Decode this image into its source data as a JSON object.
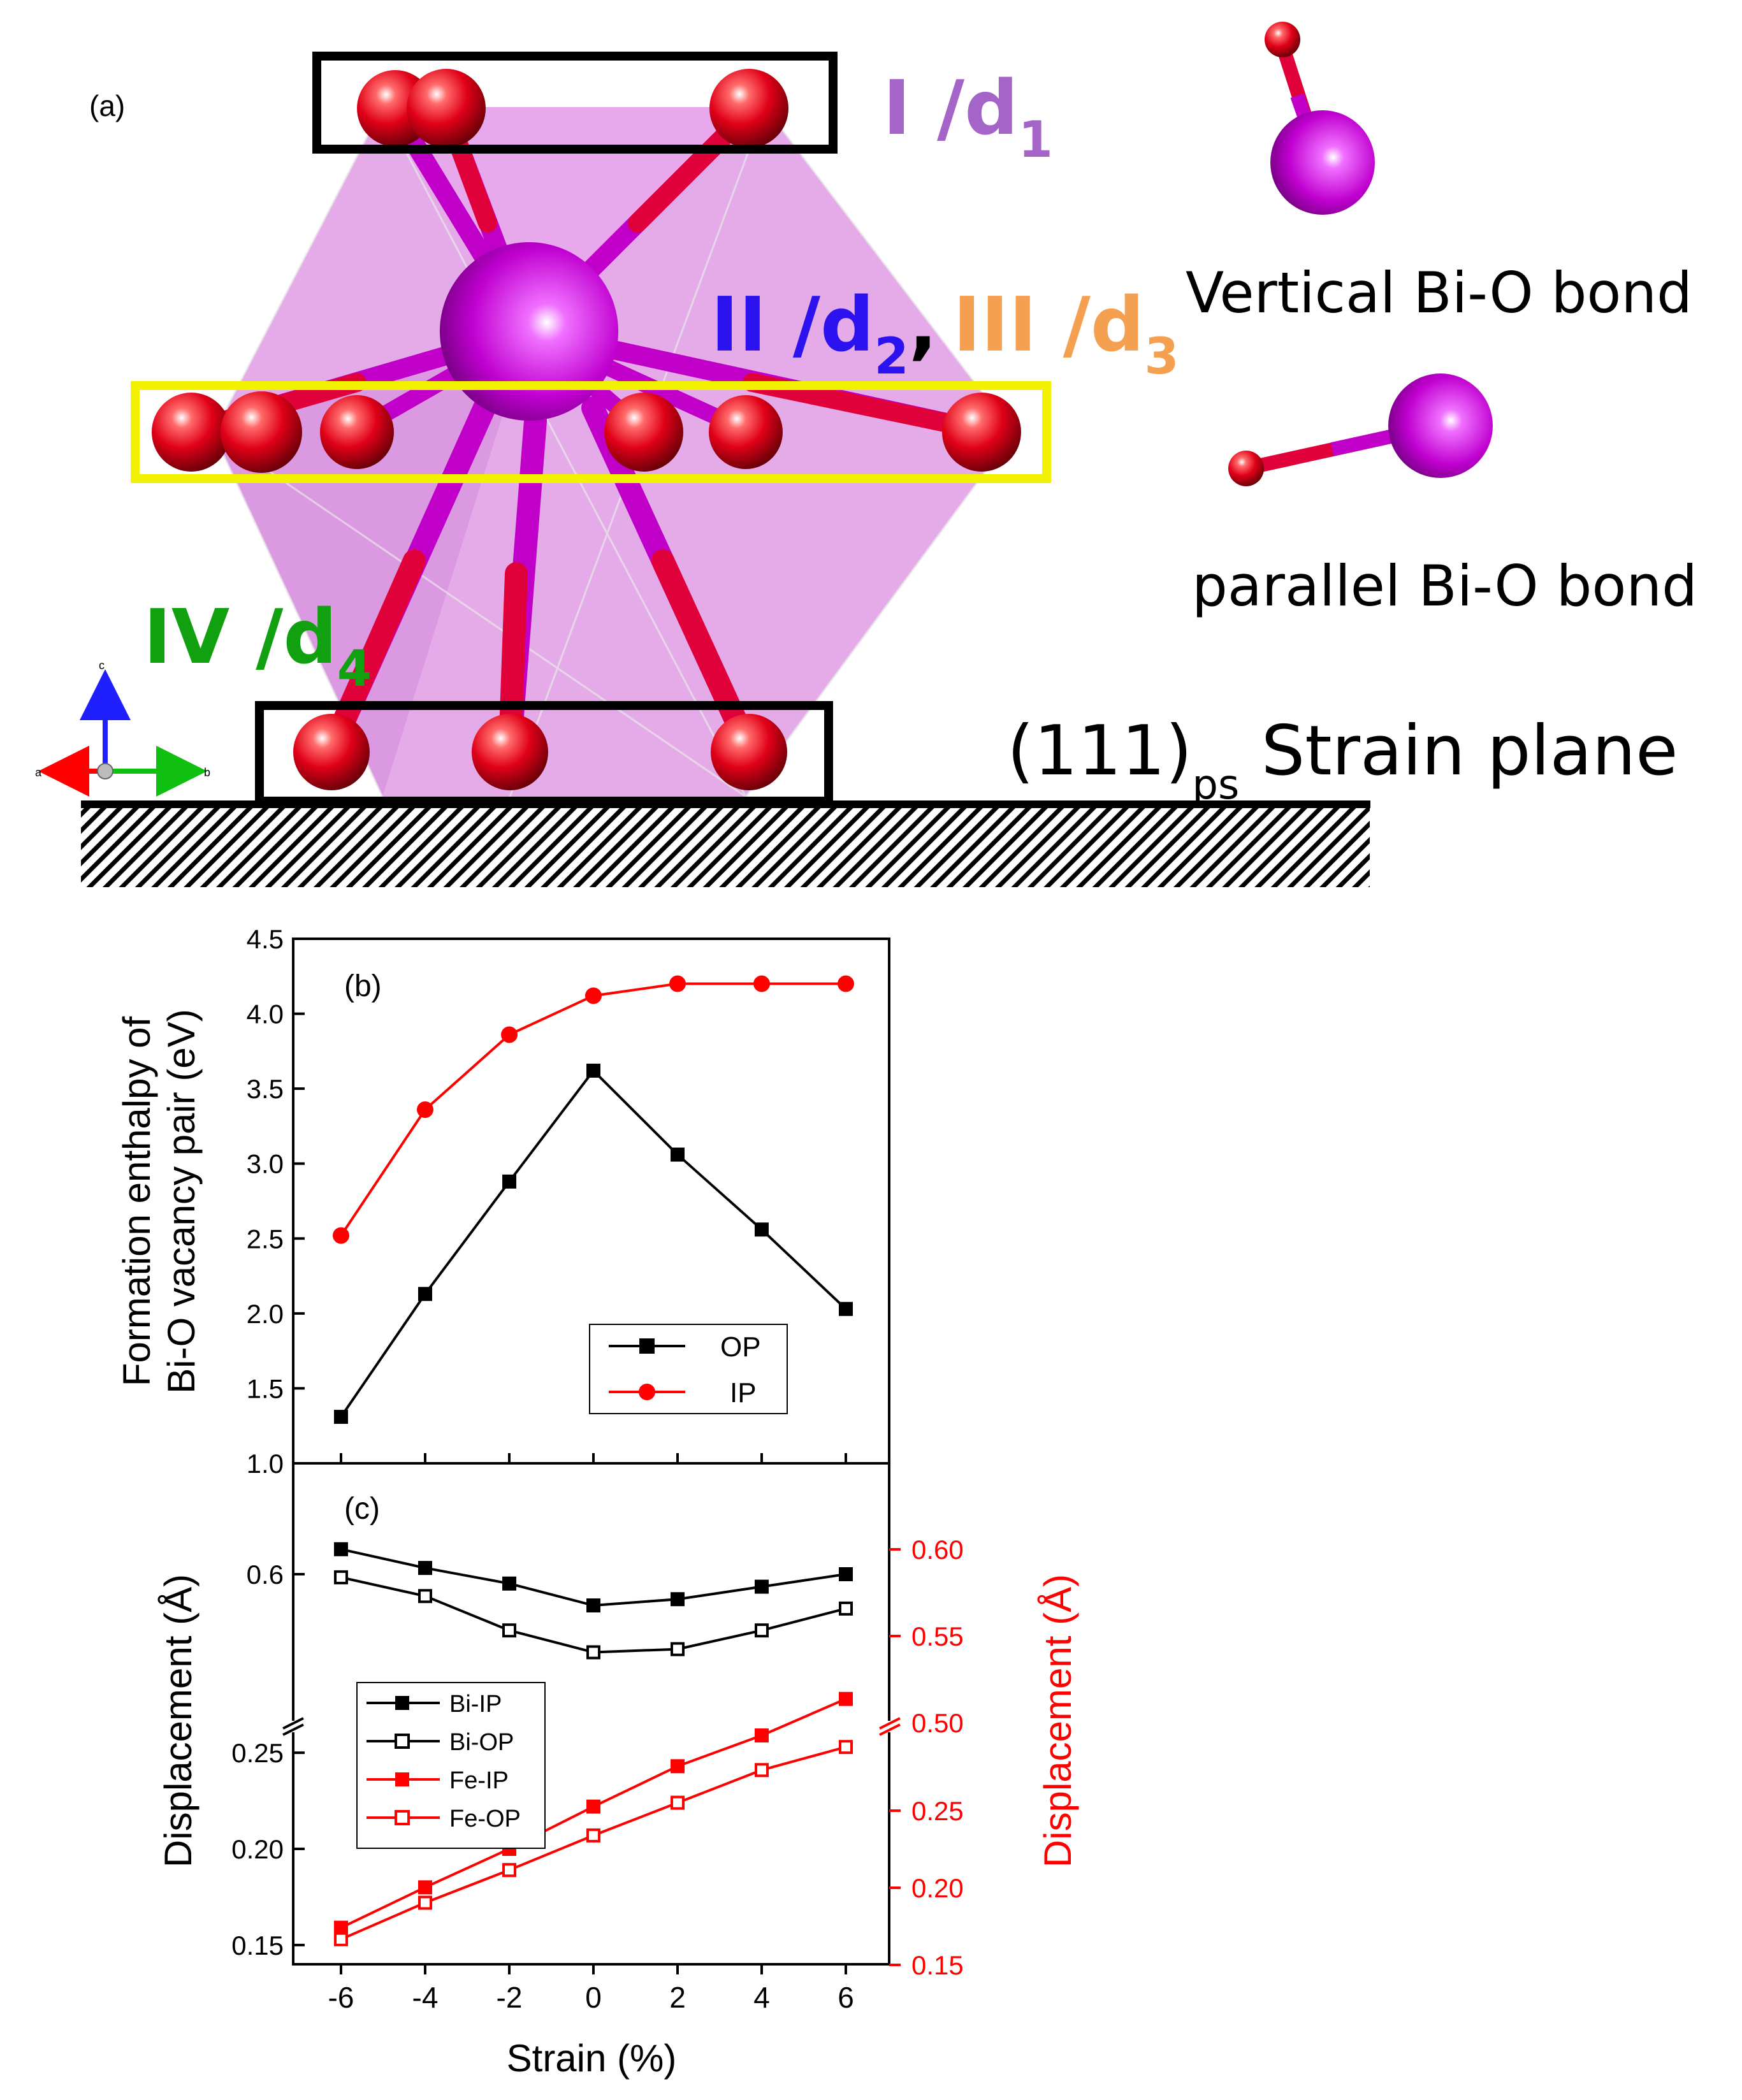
{
  "panel_a": {
    "label": "(a)",
    "tag1_num": "I /d",
    "tag1_sub": "1",
    "tag2_num": "II /d",
    "tag2_sub": "2",
    "tag_comma": ",",
    "tag3_num": "III /d",
    "tag3_sub": "3",
    "tag4_num": "IV /d",
    "tag4_sub": "4",
    "vertical_bond": "Vertical Bi-O bond",
    "parallel_bond": "parallel Bi-O bond",
    "strain_pre": "(111)",
    "strain_sub": "ps",
    "strain_post": " Strain plane",
    "axis_a": "a",
    "axis_b": "b",
    "axis_c": "c",
    "colors": {
      "oxygen": "#e8001c",
      "bismuth": "#c800d8",
      "polyhedron": "#d98fe0",
      "tag1": "#a565c8",
      "tag2": "#2b12ee",
      "tag3": "#f5a050",
      "tag4": "#10a010",
      "box_mid": "#f2f200"
    }
  },
  "chart_data": [
    {
      "type": "line",
      "panel": "(b)",
      "x": [
        -6,
        -4,
        -2,
        0,
        2,
        4,
        6
      ],
      "ylabel_line1": "Formation enthalpy of",
      "ylabel_line2": "Bi-O vacancy pair (eV)",
      "ylim": [
        1.0,
        4.5
      ],
      "yticks": [
        "1.0",
        "1.5",
        "2.0",
        "2.5",
        "3.0",
        "3.5",
        "4.0",
        "4.5"
      ],
      "series": [
        {
          "name": "OP",
          "color": "#000000",
          "marker": "square",
          "values": [
            1.31,
            2.13,
            2.88,
            3.62,
            3.06,
            2.56,
            2.03
          ]
        },
        {
          "name": "IP",
          "color": "#ff0000",
          "marker": "circle",
          "values": [
            2.52,
            3.36,
            3.86,
            4.12,
            4.2,
            4.2,
            4.2
          ]
        }
      ],
      "legend_position": "lower-center"
    },
    {
      "type": "line",
      "panel": "(c)",
      "x": [
        -6,
        -4,
        -2,
        0,
        2,
        4,
        6
      ],
      "xlabel": "Strain (%)",
      "xticks": [
        "-6",
        "-4",
        "-2",
        "0",
        "2",
        "4",
        "6"
      ],
      "ylabel_left": "Displacement (Å)",
      "ylabel_right": "Displacement (Å)",
      "left_yticks": [
        "0.15",
        "0.20",
        "0.25",
        "0.6"
      ],
      "right_yticks": [
        "0.15",
        "0.20",
        "0.25",
        "0.50",
        "0.55",
        "0.60"
      ],
      "broken_axis": true,
      "series": [
        {
          "name": "Bi-IP",
          "color": "#000000",
          "marker": "filled-square",
          "values": [
            0.608,
            0.602,
            0.597,
            0.59,
            0.592,
            0.596,
            0.6
          ]
        },
        {
          "name": "Bi-OP",
          "color": "#000000",
          "marker": "open-square",
          "values": [
            0.599,
            0.593,
            0.582,
            0.575,
            0.576,
            0.582,
            0.589
          ]
        },
        {
          "name": "Fe-IP",
          "color": "#ff0000",
          "marker": "filled-square",
          "values": [
            0.159,
            0.18,
            0.2,
            0.222,
            0.243,
            0.259,
            0.278
          ]
        },
        {
          "name": "Fe-OP",
          "color": "#ff0000",
          "marker": "open-square",
          "values": [
            0.153,
            0.172,
            0.189,
            0.207,
            0.224,
            0.241,
            0.253
          ]
        }
      ],
      "legend_position": "lower-left"
    }
  ]
}
